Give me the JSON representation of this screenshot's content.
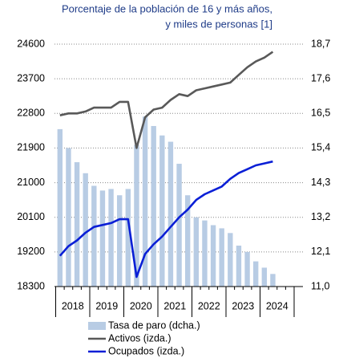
{
  "chart_data": {
    "type": "bar_line",
    "title": "Porcentaje de la población de 16 y más años,",
    "subtitle": "y miles de personas [1]",
    "years": [
      "2018",
      "2019",
      "2020",
      "2021",
      "2022",
      "2023",
      "2024"
    ],
    "ylim": [
      18300,
      24600
    ],
    "yticks": [
      18300,
      19200,
      20100,
      21000,
      21900,
      22800,
      23700,
      24600
    ],
    "y2lim": [
      11.0,
      18.7
    ],
    "y2ticks": [
      {
        "value": 11.0,
        "label": "11,0"
      },
      {
        "value": 12.1,
        "label": "12,1"
      },
      {
        "value": 13.2,
        "label": "13,2"
      },
      {
        "value": 14.3,
        "label": "14,3"
      },
      {
        "value": 15.4,
        "label": "15,4"
      },
      {
        "value": 16.5,
        "label": "16,5"
      },
      {
        "value": 17.6,
        "label": "17,6"
      },
      {
        "value": 18.7,
        "label": "18,7"
      }
    ],
    "grid": true,
    "series": [
      {
        "name": "Tasa de paro (dcha.)",
        "type": "bar",
        "axis": "y2",
        "color": "#b8cce4",
        "values": [
          16.0,
          15.4,
          14.95,
          14.6,
          14.2,
          14.05,
          14.1,
          13.9,
          14.1,
          15.5,
          16.4,
          16.1,
          15.8,
          15.6,
          14.9,
          13.9,
          13.2,
          13.1,
          12.95,
          12.85,
          12.7,
          12.3,
          12.1,
          11.8,
          11.6,
          11.4
        ]
      },
      {
        "name": "Activos (izda.)",
        "type": "line",
        "color": "#595959",
        "values": [
          22750,
          22800,
          22800,
          22850,
          22950,
          22950,
          22950,
          23100,
          23100,
          21900,
          22700,
          22900,
          22950,
          23150,
          23300,
          23250,
          23400,
          23450,
          23500,
          23550,
          23600,
          23800,
          24000,
          24150,
          24250,
          24400
        ]
      },
      {
        "name": "Ocupados (izda.)",
        "type": "line",
        "color": "#0a1fd6",
        "values": [
          19100,
          19350,
          19500,
          19700,
          19850,
          19900,
          19950,
          20050,
          20050,
          18550,
          19150,
          19400,
          19600,
          19850,
          20100,
          20300,
          20550,
          20700,
          20800,
          20900,
          21100,
          21250,
          21350,
          21450,
          21500,
          21550
        ]
      }
    ]
  }
}
